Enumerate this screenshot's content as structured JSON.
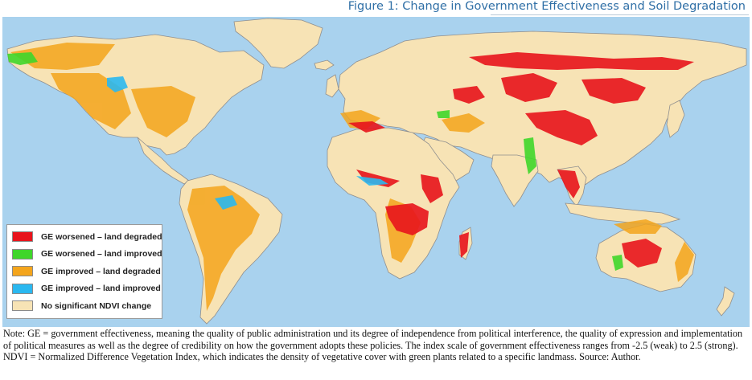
{
  "title": "Figure 1: Change in Government Effectiveness and Soil Degradation",
  "legend": [
    {
      "label": "GE worsened – land degraded",
      "color": "#e8141c"
    },
    {
      "label": "GE worsened – land improved",
      "color": "#3fd62a"
    },
    {
      "label": "GE improved – land degraded",
      "color": "#f4a51c"
    },
    {
      "label": "GE improved – land improved",
      "color": "#2ab8f0"
    },
    {
      "label": "No significant NDVI change",
      "color": "#f7e3b5"
    }
  ],
  "colors": {
    "ocean": "#a9d2ee",
    "land": "#f7e3b5",
    "border": "#8f8f8f",
    "title": "#2f6fa6"
  },
  "note": "Note: GE = government effectiveness, meaning the quality of public administration und its degree of independence from political interference, the quality of expression and implementation of political measures as well as the degree of credibility on how the government adopts these policies. The index scale of government effectiveness ranges from -2.5 (weak) to 2.5 (strong). NDVI = Normalized Difference Vegetation Index, which indicates the density of vegetative cover with green plants related to a specific landmass. Source: Author."
}
